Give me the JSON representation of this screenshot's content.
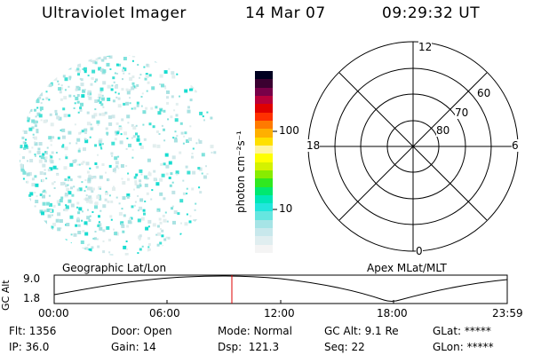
{
  "header": {
    "instrument": "Ultraviolet Imager",
    "date": "14 Mar 07",
    "time": "09:29:32 UT"
  },
  "colorbar": {
    "unit_label": "photon cm⁻²s⁻¹",
    "ticks": [
      "100",
      "10"
    ],
    "colors": [
      "#f4f4f4",
      "#e0eef0",
      "#c8e8ec",
      "#a6e4e6",
      "#66e6e0",
      "#22e6dc",
      "#00e7b8",
      "#00e870",
      "#30e820",
      "#88ec00",
      "#d4f200",
      "#ffff00",
      "#fff4a0",
      "#ffe000",
      "#ffb000",
      "#ff7a00",
      "#ff3000",
      "#e00000",
      "#b8003a",
      "#780048",
      "#3a0030",
      "#000020"
    ]
  },
  "polar_plot": {
    "labels": {
      "top": "12",
      "bottom": "0",
      "left": "18",
      "right": "6"
    },
    "rings": [
      "60",
      "70",
      "80"
    ]
  },
  "altitude_plot": {
    "ylabel": "GC Alt",
    "yticks": [
      "9.0",
      "1.8"
    ],
    "left_title": "Geographic Lat/Lon",
    "right_title": "Apex MLat/MLT",
    "xticks": [
      "00:00",
      "06:00",
      "12:00",
      "18:00",
      "23:59"
    ]
  },
  "status": {
    "flt": "Flt: 1356",
    "ip": "IP: 36.0",
    "door": "Door: Open",
    "gain": "Gain: 14",
    "mode": "Mode: Normal",
    "dsp": "Dsp:  121.3",
    "gcalt": "GC Alt: 9.1 Re",
    "seq": "Seq: 22",
    "glat": "GLat: *****",
    "glon": "GLon: *****"
  }
}
